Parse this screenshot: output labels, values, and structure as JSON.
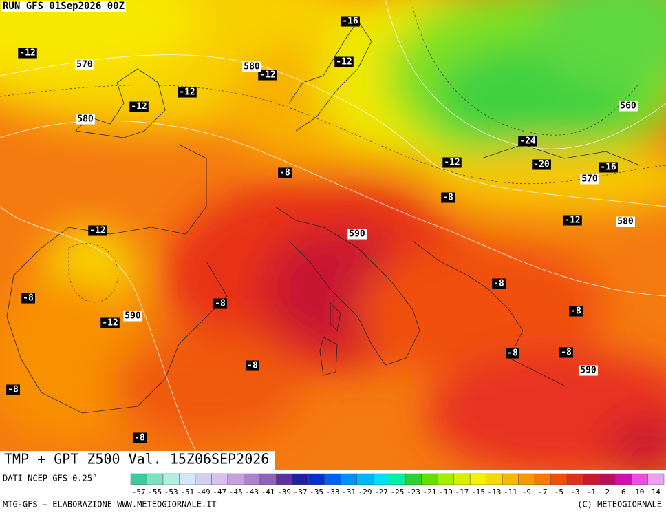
{
  "header": {
    "run": "RUN GFS 01Sep2026 00Z"
  },
  "map": {
    "title": "TMP + GPT Z500 Val. 15Z06SEP2026",
    "temperature_labels": [
      -16,
      -12,
      -12,
      -12,
      -12,
      -12,
      -24,
      -12,
      -20,
      -16,
      -8,
      -8,
      -12,
      -12,
      -8,
      -8,
      -8,
      -8,
      -12,
      -8,
      -8,
      -8,
      -8,
      -8
    ],
    "geopotential_labels": [
      570,
      580,
      580,
      560,
      570,
      580,
      590,
      590,
      590
    ]
  },
  "colorbar": {
    "labels": [
      -57,
      -55,
      -53,
      -51,
      -49,
      -47,
      -45,
      -43,
      -41,
      -39,
      -37,
      -35,
      -33,
      -31,
      -29,
      -27,
      -25,
      -23,
      -21,
      -19,
      -17,
      -15,
      -13,
      -11,
      -9,
      -7,
      -5,
      -3,
      -1,
      2,
      6,
      10,
      14
    ],
    "colors": [
      "#40c8a0",
      "#80e0c0",
      "#b0f0e0",
      "#d0e8f8",
      "#d0d0f0",
      "#d8c0f0",
      "#c8a0e0",
      "#b080d0",
      "#9060c0",
      "#6030a0",
      "#2020a0",
      "#0030d0",
      "#0060f0",
      "#0090f8",
      "#00b8f8",
      "#00e0f0",
      "#00f0a0",
      "#30d030",
      "#60e000",
      "#a0f000",
      "#d8f000",
      "#f8f000",
      "#f8d800",
      "#f8b800",
      "#f89800",
      "#f87800",
      "#f05000",
      "#e03020",
      "#c81830",
      "#b81060",
      "#d010b0",
      "#e850e0",
      "#f0a0f0"
    ]
  },
  "footer": {
    "source": "DATI NCEP GFS 0.25°",
    "credit": "MTG-GFS — ELABORAZIONE WWW.METEOGIORNALE.IT",
    "copyright": "(C) METEOGIORNALE"
  }
}
